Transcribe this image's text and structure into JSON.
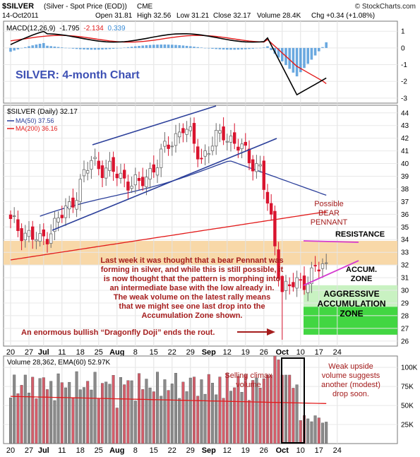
{
  "header": {
    "symbol": "$SILVER",
    "description": "(Silver - Spot Price (EOD))",
    "exchange": "CME",
    "date": "14-Oct2011",
    "open": "Open 31.81",
    "high": "High 32.56",
    "low": "Low 31.21",
    "close": "Close 32.17",
    "volume": "Volume 28.4K",
    "chg": "Chg +0.34 (+1.08%)",
    "brand": "© StockCharts.com"
  },
  "macd": {
    "label": "MACD(12,26,9)",
    "v1": "-1.795",
    "v2": "-2.134",
    "v3": "0.339",
    "y_ticks": [
      "1",
      "0",
      "-1",
      "-2",
      "-3"
    ],
    "ylim": [
      -3.3,
      1.6
    ]
  },
  "price": {
    "label": "$SILVER (Daily) 32.17",
    "ma50": "MA(50) 37.56",
    "ma200": "MA(200) 36.16",
    "y_ticks": [
      "44",
      "43",
      "42",
      "41",
      "40",
      "39",
      "38",
      "37",
      "36",
      "35",
      "34",
      "33",
      "32",
      "31",
      "30",
      "29",
      "28",
      "27",
      "26"
    ],
    "ylim": [
      25.6,
      44.6
    ]
  },
  "volume": {
    "label": "Volume 28,362, EMA(60) 52.97K",
    "y_ticks": [
      "100K",
      "75K",
      "50K",
      "25K"
    ],
    "ylim": [
      0,
      115000
    ]
  },
  "x_labels": [
    "20",
    "27",
    "Jul",
    "11",
    "18",
    "25",
    "Aug",
    "8",
    "15",
    "22",
    "29",
    "Sep",
    "12",
    "19",
    "26",
    "Oct",
    "10",
    "17",
    "24"
  ],
  "annotations": {
    "chart_title": "SILVER: 4-month Chart",
    "possible_bear": "Possible",
    "bear": "BEAR",
    "pennant": "PENNANT",
    "resistance": "RESISTANCE",
    "accum1": "ACCUM.",
    "accum2": "ZONE",
    "agg1": "AGGRESSIVE",
    "agg2": "ACCUMULATION",
    "agg3": "ZONE",
    "commentary": [
      "Last week it was thought that a bear Pennant was",
      "forming in silver, and while this is still possible, it",
      "is now thought that the pattern is morphing into",
      "an intermediate base with the low already in.",
      "The weak volume on the latest rally means",
      "that we might see one last drop into the",
      "Accumulation Zone shown."
    ],
    "doji": "An enormous bullish “Dragonfly Doji” ends the rout.",
    "climax1": "Selling climax",
    "climax2": "volume",
    "weak1": "Weak upside",
    "weak2": "volume suggests",
    "weak3": "another (modest)",
    "weak4": "drop soon."
  },
  "colors": {
    "up": "#6b6b6b",
    "down": "#d9142f",
    "ma50": "#2b3f9a",
    "ma200": "#e21b1b",
    "resistance_band": "#f8d8a8",
    "accum_zone": "#c9f2c2",
    "aggressive_zone": "#42d642",
    "annotation": "#a51d1d",
    "title": "#3d50b4",
    "pennant": "#d53bd0"
  },
  "chart_data": {
    "type": "candlestick",
    "title": "SILVER: 4-month Chart",
    "x_tick_labels": [
      "20",
      "27",
      "Jul",
      "11",
      "18",
      "25",
      "Aug",
      "8",
      "15",
      "22",
      "29",
      "Sep",
      "12",
      "19",
      "26",
      "Oct",
      "10",
      "17",
      "24"
    ],
    "price_key_points": [
      {
        "date": "Jun 20",
        "close": 35.3
      },
      {
        "date": "Jun 30",
        "close": 33.8
      },
      {
        "date": "Jul 11",
        "close": 36.6
      },
      {
        "date": "Jul 18",
        "close": 40.2
      },
      {
        "date": "Aug 5",
        "close": 38.2
      },
      {
        "date": "Aug 22",
        "close": 43.0
      },
      {
        "date": "Aug 29",
        "close": 40.5
      },
      {
        "date": "Sep 6",
        "close": 42.5
      },
      {
        "date": "Sep 19",
        "close": 39.6
      },
      {
        "date": "Sep 22",
        "close": 35.3
      },
      {
        "date": "Sep 26",
        "close": 30.1
      },
      {
        "date": "Oct 14",
        "close": 32.17
      }
    ],
    "resistance_band": [
      32.0,
      33.9
    ],
    "accum_zone": [
      28.7,
      30.4
    ],
    "aggressive_accum_zone": [
      26.5,
      28.7
    ],
    "volume_peak": 115000
  }
}
